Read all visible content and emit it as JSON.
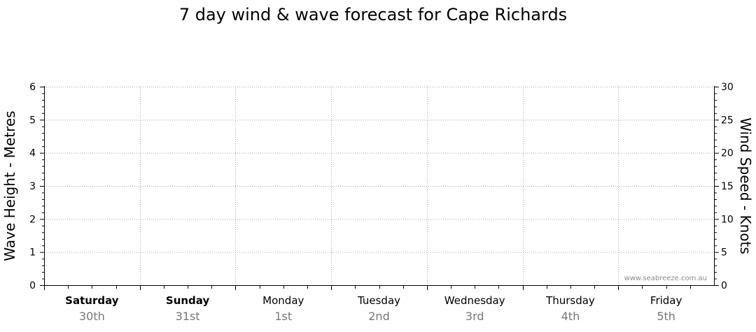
{
  "chart_data": {
    "type": "line",
    "title": "7 day wind & wave forecast for Cape Richards",
    "y_left": {
      "label": "Wave Height - Metres",
      "ylim": [
        0,
        6
      ],
      "ticks": [
        0,
        1,
        2,
        3,
        4,
        5,
        6
      ]
    },
    "y_right": {
      "label": "Wind Speed - Knots",
      "ylim": [
        0,
        30
      ],
      "ticks": [
        0,
        5,
        10,
        15,
        20,
        25,
        30
      ]
    },
    "grid": true,
    "days": [
      {
        "day": "Saturday",
        "date": "30th",
        "bold": true
      },
      {
        "day": "Sunday",
        "date": "31st",
        "bold": true
      },
      {
        "day": "Monday",
        "date": "1st",
        "bold": false
      },
      {
        "day": "Tuesday",
        "date": "2nd",
        "bold": false
      },
      {
        "day": "Wednesday",
        "date": "3rd",
        "bold": false
      },
      {
        "day": "Thursday",
        "date": "4th",
        "bold": false
      },
      {
        "day": "Friday",
        "date": "5th",
        "bold": false
      }
    ],
    "series": [],
    "watermark": "www.seabreeze.com.au"
  }
}
